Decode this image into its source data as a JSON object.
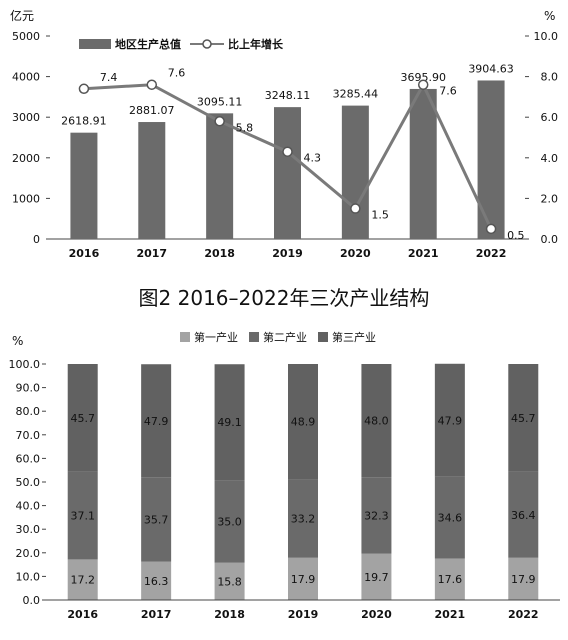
{
  "chart_data": [
    {
      "type": "bar",
      "left_axis_unit": "亿元",
      "right_axis_unit": "%",
      "legend": {
        "bar_label": "地区生产总值",
        "line_label": "比上年增长",
        "position": "top"
      },
      "categories": [
        "2016",
        "2017",
        "2018",
        "2019",
        "2020",
        "2021",
        "2022"
      ],
      "series": [
        {
          "name": "地区生产总值",
          "type": "bar",
          "axis": "left",
          "values": [
            2618.91,
            2881.07,
            3095.11,
            3248.11,
            3285.44,
            3695.9,
            3904.63
          ],
          "labels": [
            "2618.91",
            "2881.07",
            "3095.11",
            "3248.11",
            "3285.44",
            "3695.90",
            "3904.63"
          ]
        },
        {
          "name": "比上年增长",
          "type": "line",
          "axis": "right",
          "values": [
            7.4,
            7.6,
            5.8,
            4.3,
            1.5,
            7.6,
            0.5
          ],
          "labels": [
            "7.4",
            "7.6",
            "5.8",
            "4.3",
            "1.5",
            "7.6",
            "0.5"
          ]
        }
      ],
      "ylim_left": [
        0,
        5000
      ],
      "ylim_right": [
        0,
        10.0
      ],
      "yticks_left": [
        "0",
        "1000",
        "2000",
        "3000",
        "4000",
        "5000"
      ],
      "yticks_right": [
        "0.0",
        "2.0",
        "4.0",
        "6.0",
        "8.0",
        "10.0"
      ],
      "colors": {
        "bar": "#6b6b6b",
        "line": "#7a7a7a"
      }
    },
    {
      "type": "bar",
      "stacked": true,
      "title": "图2   2016–2022年三次产业结构",
      "ylabel": "%",
      "categories": [
        "2016",
        "2017",
        "2018",
        "2019",
        "2020",
        "2021",
        "2022"
      ],
      "series": [
        {
          "name": "第一产业",
          "values": [
            17.2,
            16.3,
            15.8,
            17.9,
            19.7,
            17.6,
            17.9
          ],
          "labels": [
            "17.2",
            "16.3",
            "15.8",
            "17.9",
            "19.7",
            "17.6",
            "17.9"
          ]
        },
        {
          "name": "第二产业",
          "values": [
            37.1,
            35.7,
            35.0,
            33.2,
            32.3,
            34.6,
            36.4
          ],
          "labels": [
            "37.1",
            "35.7",
            "35.0",
            "33.2",
            "32.3",
            "34.6",
            "36.4"
          ]
        },
        {
          "name": "第三产业",
          "values": [
            45.7,
            47.9,
            49.1,
            48.9,
            48.0,
            47.9,
            45.7
          ],
          "labels": [
            "45.7",
            "47.9",
            "49.1",
            "48.9",
            "48.0",
            "47.9",
            "45.7"
          ]
        }
      ],
      "ylim": [
        0,
        100
      ],
      "yticks": [
        "0.0",
        "10.0",
        "20.0",
        "30.0",
        "40.0",
        "50.0",
        "60.0",
        "70.0",
        "80.0",
        "90.0",
        "100.0"
      ],
      "legend_position": "top",
      "colors": {
        "第一产业": "#a3a3a3",
        "第二产业": "#6a6a6a",
        "第三产业": "#616161"
      }
    }
  ]
}
